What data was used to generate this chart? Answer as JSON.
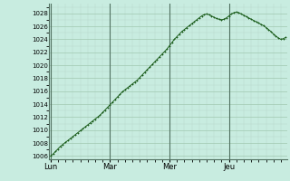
{
  "bg_color": "#c8ece0",
  "plot_bg_color": "#c8ece0",
  "line_color": "#1a5c1a",
  "marker": "+",
  "marker_size": 2,
  "marker_lw": 0.6,
  "line_width": 0.7,
  "grid_color": "#a0c8b0",
  "grid_minor_color": "#b8d8c8",
  "ylim": [
    1005.5,
    1029.5
  ],
  "yticks": [
    1006,
    1008,
    1010,
    1012,
    1014,
    1016,
    1018,
    1020,
    1022,
    1024,
    1026,
    1028
  ],
  "ylabel_fontsize": 5.0,
  "day_labels": [
    "Lun",
    "Mar",
    "Mer",
    "Jeu"
  ],
  "day_positions": [
    0,
    24,
    48,
    72
  ],
  "xlabel_fontsize": 6.0,
  "total_hours": 96,
  "pressure_data": [
    1006.0,
    1006.3,
    1006.7,
    1007.1,
    1007.5,
    1007.8,
    1008.1,
    1008.4,
    1008.7,
    1009.0,
    1009.3,
    1009.6,
    1009.9,
    1010.2,
    1010.5,
    1010.8,
    1011.1,
    1011.4,
    1011.7,
    1012.0,
    1012.3,
    1012.7,
    1013.1,
    1013.5,
    1013.9,
    1014.3,
    1014.7,
    1015.1,
    1015.5,
    1015.9,
    1016.2,
    1016.5,
    1016.8,
    1017.1,
    1017.4,
    1017.7,
    1018.1,
    1018.5,
    1018.9,
    1019.3,
    1019.7,
    1020.1,
    1020.5,
    1020.9,
    1021.3,
    1021.7,
    1022.1,
    1022.5,
    1023.0,
    1023.5,
    1024.0,
    1024.4,
    1024.8,
    1025.2,
    1025.5,
    1025.8,
    1026.1,
    1026.4,
    1026.7,
    1027.0,
    1027.3,
    1027.6,
    1027.8,
    1027.9,
    1027.8,
    1027.6,
    1027.4,
    1027.2,
    1027.1,
    1027.0,
    1027.1,
    1027.3,
    1027.6,
    1027.9,
    1028.1,
    1028.2,
    1028.1,
    1027.9,
    1027.7,
    1027.5,
    1027.3,
    1027.1,
    1026.9,
    1026.7,
    1026.5,
    1026.3,
    1026.1,
    1025.8,
    1025.5,
    1025.2,
    1024.8,
    1024.5,
    1024.2,
    1024.0,
    1024.1,
    1024.3
  ]
}
